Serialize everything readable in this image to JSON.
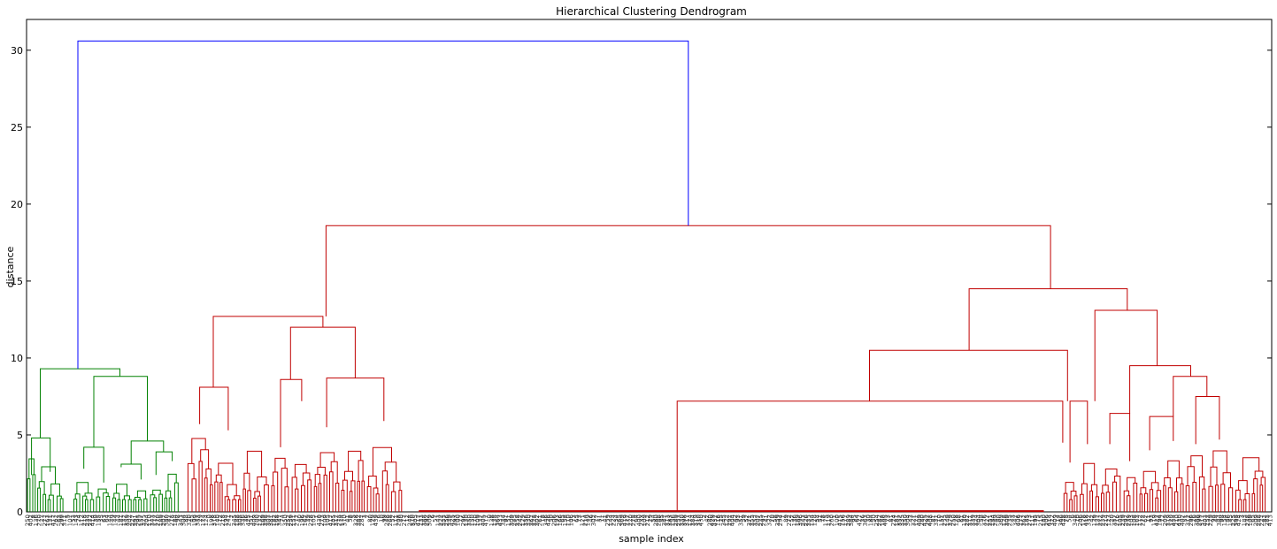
{
  "chart_data": {
    "type": "dendrogram",
    "title": "Hierarchical Clustering Dendrogram",
    "xlabel": "sample index",
    "ylabel": "distance",
    "ylim": [
      0,
      32
    ],
    "yticks": [
      0,
      5,
      10,
      15,
      20,
      25,
      30
    ],
    "grid": false,
    "colors": {
      "root": "#0000ff",
      "cluster_green": "#008000",
      "cluster_red": "#c00000"
    },
    "approx_leaf_count": 440,
    "root": {
      "distance": 30.6,
      "color": "#0000ff",
      "children": [
        "green_cluster",
        "red_cluster"
      ]
    },
    "green_cluster": {
      "distance": 9.3,
      "color": "#008000",
      "leaf_range": [
        0,
        0.123
      ],
      "merges": [
        {
          "d": 9.3,
          "l": 0.01,
          "r": 0.22
        },
        {
          "d": 8.8,
          "l": 0.14,
          "r": 0.34
        },
        {
          "d": 4.6,
          "l": 0.27,
          "r": 0.43
        },
        {
          "d": 4.2,
          "l": 0.1,
          "r": 0.18
        },
        {
          "d": 3.9,
          "l": 0.38,
          "r": 0.5
        },
        {
          "d": 4.8,
          "l": 0.0,
          "r": 0.02
        }
      ]
    },
    "red_cluster": {
      "distance": 18.6,
      "color": "#c00000",
      "merges": [
        {
          "d": 18.6,
          "l": 0.2405,
          "r": 0.8224
        },
        {
          "d": 12.7,
          "l": 0.1713,
          "r": 0.2847
        },
        {
          "d": 12.0,
          "l": 0.2167,
          "r": 0.2633
        },
        {
          "d": 8.6,
          "l": 0.2037,
          "r": 0.232
        },
        {
          "d": 8.7,
          "l": 0.2489,
          "r": 0.2823
        },
        {
          "d": 8.1,
          "l": 0.1446,
          "r": 0.1786
        },
        {
          "d": 14.5,
          "l": 0.7568,
          "r": 0.884
        },
        {
          "d": 10.5,
          "l": 0.6779,
          "r": 0.8357
        },
        {
          "d": 13.1,
          "l": 0.858,
          "r": 0.9083
        },
        {
          "d": 9.5,
          "l": 0.8938,
          "r": 0.9223
        },
        {
          "d": 8.8,
          "l": 0.8998,
          "r": 0.9448
        },
        {
          "d": 7.5,
          "l": 0.9346,
          "r": 0.955
        },
        {
          "d": 7.2,
          "l": 0.5225,
          "r": 0.8322
        },
        {
          "d": 7.2,
          "l": 0.8218,
          "r": 0.8452
        },
        {
          "d": 6.4,
          "l": 0.8624,
          "r": 0.8805
        },
        {
          "d": 6.2,
          "l": 0.9135,
          "r": 0.9302
        },
        {
          "d": 6.3,
          "l": 0.952,
          "r": 0.974
        }
      ]
    },
    "flat_segment": {
      "distance": 0.05,
      "leaf_range": [
        0.315,
        0.817
      ]
    }
  }
}
